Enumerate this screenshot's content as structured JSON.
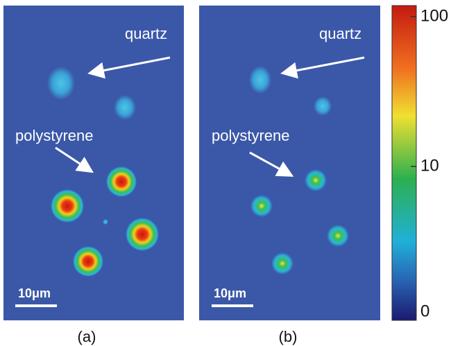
{
  "panels": [
    {
      "label": "(a)",
      "quartz": "quartz",
      "polystyrene": "polystyrene",
      "scale_bar": "10μm"
    },
    {
      "label": "(b)",
      "quartz": "quartz",
      "polystyrene": "polystyrene",
      "scale_bar": "10μm"
    }
  ],
  "colorbar": {
    "ticks": [
      100,
      10,
      0
    ]
  }
}
